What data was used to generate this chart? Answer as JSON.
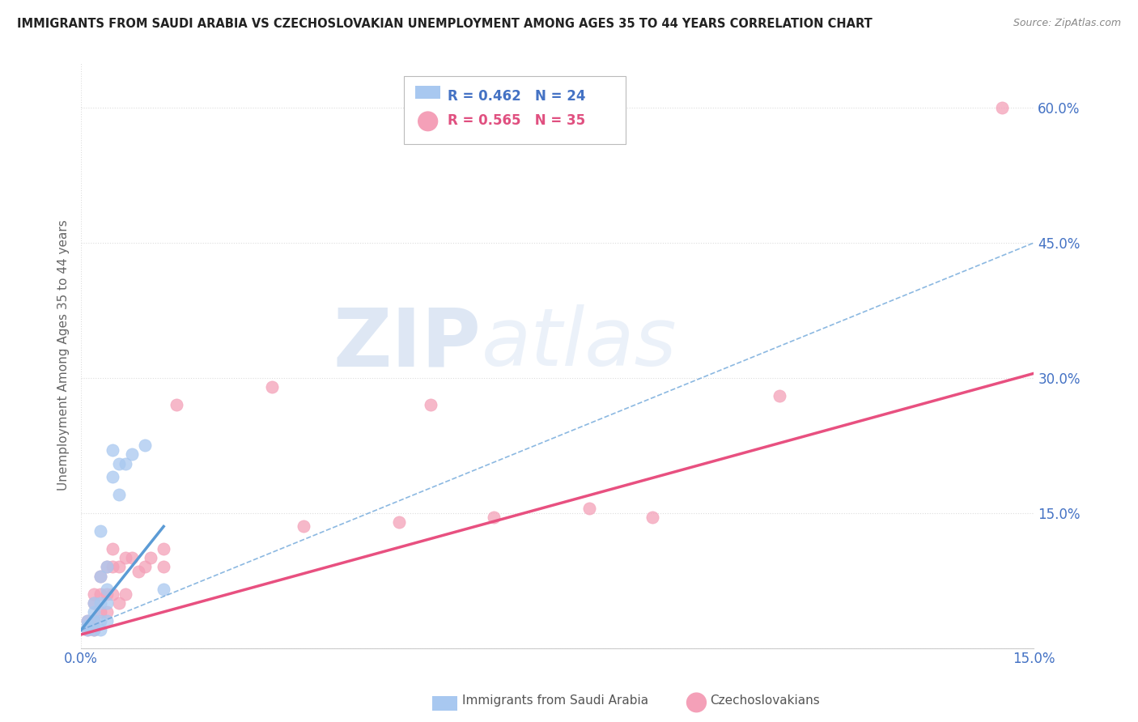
{
  "title": "IMMIGRANTS FROM SAUDI ARABIA VS CZECHOSLOVAKIAN UNEMPLOYMENT AMONG AGES 35 TO 44 YEARS CORRELATION CHART",
  "source": "Source: ZipAtlas.com",
  "ylabel": "Unemployment Among Ages 35 to 44 years",
  "xlim": [
    0.0,
    0.15
  ],
  "ylim": [
    0.0,
    0.65
  ],
  "x_ticks": [
    0.0,
    0.05,
    0.1,
    0.15
  ],
  "x_tick_labels": [
    "0.0%",
    "",
    "",
    "15.0%"
  ],
  "y_ticks": [
    0.0,
    0.15,
    0.3,
    0.45,
    0.6
  ],
  "y_tick_labels": [
    "",
    "15.0%",
    "30.0%",
    "45.0%",
    "60.0%"
  ],
  "blue_color": "#a8c8f0",
  "pink_color": "#f4a0b8",
  "blue_line_color": "#5b9bd5",
  "pink_line_color": "#e85080",
  "watermark_zip": "ZIP",
  "watermark_atlas": "atlas",
  "legend_label_blue": "Immigrants from Saudi Arabia",
  "legend_label_pink": "Czechoslovakians",
  "blue_scatter_x": [
    0.001,
    0.001,
    0.001,
    0.002,
    0.002,
    0.002,
    0.002,
    0.003,
    0.003,
    0.003,
    0.003,
    0.003,
    0.004,
    0.004,
    0.004,
    0.004,
    0.005,
    0.005,
    0.006,
    0.006,
    0.007,
    0.008,
    0.01,
    0.013
  ],
  "blue_scatter_y": [
    0.02,
    0.025,
    0.03,
    0.02,
    0.03,
    0.04,
    0.05,
    0.02,
    0.03,
    0.05,
    0.08,
    0.13,
    0.03,
    0.05,
    0.065,
    0.09,
    0.19,
    0.22,
    0.17,
    0.205,
    0.205,
    0.215,
    0.225,
    0.065
  ],
  "pink_scatter_x": [
    0.001,
    0.001,
    0.002,
    0.002,
    0.002,
    0.002,
    0.003,
    0.003,
    0.003,
    0.004,
    0.004,
    0.004,
    0.005,
    0.005,
    0.005,
    0.006,
    0.006,
    0.007,
    0.007,
    0.008,
    0.009,
    0.01,
    0.011,
    0.013,
    0.013,
    0.015,
    0.03,
    0.035,
    0.05,
    0.055,
    0.065,
    0.08,
    0.09,
    0.11,
    0.145
  ],
  "pink_scatter_y": [
    0.02,
    0.03,
    0.02,
    0.03,
    0.05,
    0.06,
    0.04,
    0.06,
    0.08,
    0.04,
    0.06,
    0.09,
    0.06,
    0.09,
    0.11,
    0.05,
    0.09,
    0.06,
    0.1,
    0.1,
    0.085,
    0.09,
    0.1,
    0.09,
    0.11,
    0.27,
    0.29,
    0.135,
    0.14,
    0.27,
    0.145,
    0.155,
    0.145,
    0.28,
    0.6
  ],
  "blue_trend_x": [
    0.0,
    0.013
  ],
  "blue_trend_y": [
    0.02,
    0.135
  ],
  "pink_trend_x": [
    0.0,
    0.15
  ],
  "pink_trend_y": [
    0.015,
    0.305
  ],
  "blue_dash_trend_x": [
    0.0,
    0.15
  ],
  "blue_dash_trend_y": [
    0.02,
    0.45
  ],
  "grid_color": "#dddddd",
  "background_color": "#ffffff"
}
